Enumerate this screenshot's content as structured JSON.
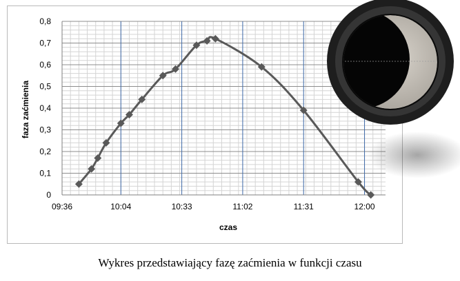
{
  "caption": "Wykres przedstawiający fazę zaćmienia w funkcji czasu",
  "chart_data": {
    "type": "line",
    "title": "",
    "xlabel": "czas",
    "ylabel": "faza zaćmienia",
    "x_tick_labels": [
      "09:36",
      "10:04",
      "10:33",
      "11:02",
      "11:31",
      "12:00"
    ],
    "y_tick_labels": [
      "0",
      "0,1",
      "0,2",
      "0,3",
      "0,4",
      "0,5",
      "0,6",
      "0,7",
      "0,8"
    ],
    "ylim": [
      0,
      0.8
    ],
    "xlim": [
      "09:36",
      "12:10"
    ],
    "grid": true,
    "legend": "none",
    "series": [
      {
        "marker": "diamond",
        "color": "#595959",
        "points": [
          {
            "x": "09:44",
            "y": 0.05
          },
          {
            "x": "09:50",
            "y": 0.12
          },
          {
            "x": "09:53",
            "y": 0.17
          },
          {
            "x": "09:57",
            "y": 0.24
          },
          {
            "x": "10:04",
            "y": 0.33
          },
          {
            "x": "10:08",
            "y": 0.37
          },
          {
            "x": "10:14",
            "y": 0.44
          },
          {
            "x": "10:24",
            "y": 0.55
          },
          {
            "x": "10:30",
            "y": 0.58
          },
          {
            "x": "10:40",
            "y": 0.69
          },
          {
            "x": "10:45",
            "y": 0.71
          },
          {
            "x": "10:49",
            "y": 0.72
          },
          {
            "x": "11:11",
            "y": 0.59
          },
          {
            "x": "11:31",
            "y": 0.39
          },
          {
            "x": "11:57",
            "y": 0.06
          },
          {
            "x": "12:03",
            "y": 0.0
          }
        ]
      }
    ]
  },
  "photo": {
    "subject": "eclipse-photo",
    "colors": {
      "disc": "#c9c4bc",
      "moon": "#050505",
      "rim": "#3a3a3a"
    }
  }
}
